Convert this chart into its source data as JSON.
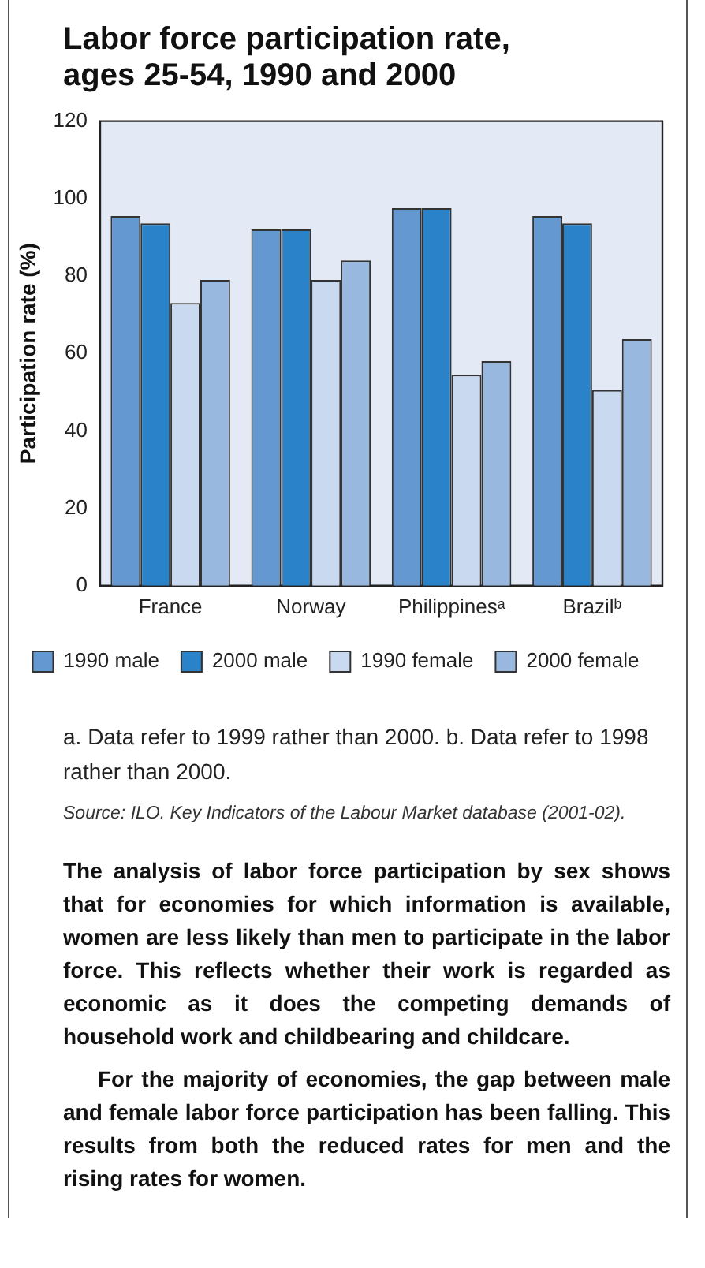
{
  "chart_data": {
    "type": "bar",
    "title": "Labor force participation rate, ages 25-54, 1990 and 2000",
    "ylabel": "Participation rate (%)",
    "categories": [
      "France",
      "Norway",
      "Philippinesᵃ",
      "Brazilᵇ"
    ],
    "series": [
      {
        "name": "1990 male",
        "color": "#6399d0",
        "values": [
          95.5,
          92,
          97.5,
          95.5
        ]
      },
      {
        "name": "2000 male",
        "color": "#2a82c8",
        "values": [
          93.6,
          92,
          97.5,
          93.6
        ]
      },
      {
        "name": "1990 female",
        "color": "#c9d9ef",
        "values": [
          73,
          79,
          54.5,
          50.5
        ]
      },
      {
        "name": "2000 female",
        "color": "#98b8e0",
        "values": [
          79,
          84,
          58,
          63.7
        ]
      }
    ],
    "ylim": [
      0,
      120
    ],
    "yticks": [
      0,
      20,
      40,
      60,
      80,
      100,
      120
    ],
    "grid": false,
    "legend": "bottom",
    "annotations": [
      "a. Data refer to 1999 rather than 2000.  b. Data refer to 1998 rather than 2000.",
      "Source:  ILO. Key Indicators of the Labour Market database (2001-02).",
      "The analysis of labor force participation by sex shows that for economies for which information is available, women are less likely than men to participate in the labor force.  This reflects whether their work is regarded as economic as it does the competing demands of household work and childbearing and childcare.",
      "For the majority of economies, the gap between male and female labor force participation has been falling.  This results from both the reduced rates for men and the rising rates for women."
    ]
  }
}
